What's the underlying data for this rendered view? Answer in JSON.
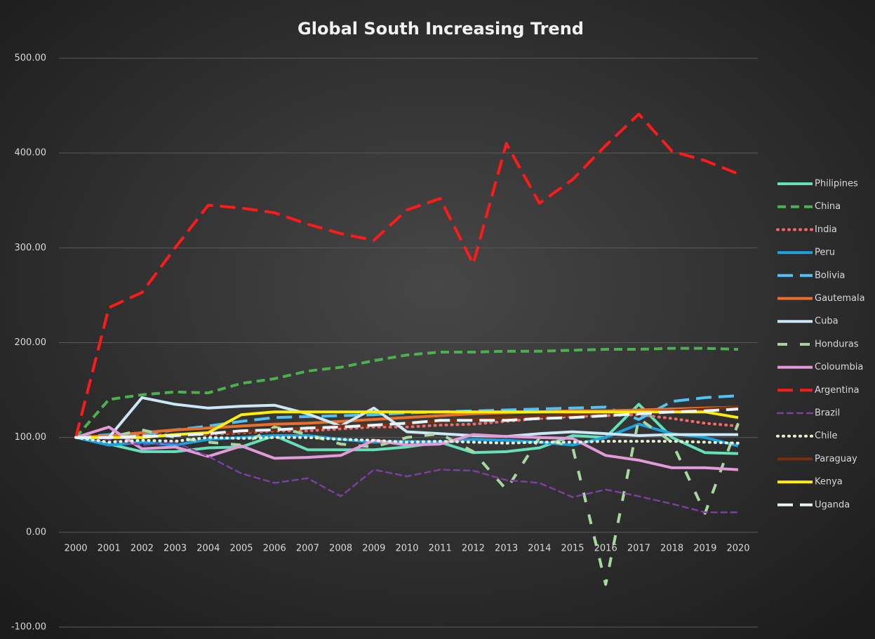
{
  "chart_data": {
    "type": "line",
    "title": "Global South Increasing Trend",
    "categories": [
      "2000",
      "2001",
      "2002",
      "2003",
      "2004",
      "2005",
      "2006",
      "2007",
      "2008",
      "2009",
      "2010",
      "2011",
      "2012",
      "2013",
      "2014",
      "2015",
      "2016",
      "2017",
      "2018",
      "2019",
      "2020"
    ],
    "ylim": [
      -100,
      500
    ],
    "yticks": [
      {
        "value": -100,
        "label": "-100.00"
      },
      {
        "value": 0,
        "label": "0.00"
      },
      {
        "value": 100,
        "label": "100.00"
      },
      {
        "value": 200,
        "label": "200.00"
      },
      {
        "value": 300,
        "label": "300.00"
      },
      {
        "value": 400,
        "label": "400.00"
      },
      {
        "value": 500,
        "label": "500.00"
      }
    ],
    "grid": true,
    "legend": "right",
    "series": [
      {
        "name": "Philipines",
        "color": "#66e0b8",
        "dash": "solid",
        "values": [
          100,
          93,
          85,
          85,
          89,
          90,
          102,
          87,
          87,
          87,
          90,
          95,
          84,
          85,
          89,
          102,
          100,
          135,
          100,
          84,
          83
        ]
      },
      {
        "name": "China",
        "color": "#4caf50",
        "dash": "dashed",
        "values": [
          100,
          140,
          145,
          148,
          147,
          157,
          162,
          170,
          174,
          181,
          187,
          190,
          190,
          191,
          191,
          192,
          193,
          193,
          194,
          194,
          193
        ]
      },
      {
        "name": "India",
        "color": "#f06a6a",
        "dash": "dotted",
        "values": [
          100,
          100,
          102,
          103,
          103,
          105,
          107,
          107,
          109,
          111,
          111,
          113,
          114,
          117,
          120,
          122,
          123,
          124,
          120,
          115,
          112
        ]
      },
      {
        "name": "Peru",
        "color": "#1ba1e2",
        "dash": "solid",
        "values": [
          100,
          92,
          95,
          92,
          98,
          100,
          102,
          102,
          98,
          95,
          96,
          95,
          98,
          97,
          95,
          92,
          100,
          114,
          104,
          100,
          91
        ]
      },
      {
        "name": "Bolivia",
        "color": "#4fc3f7",
        "dash": "longdash",
        "values": [
          100,
          103,
          103,
          108,
          112,
          117,
          121,
          122,
          123,
          124,
          126,
          127,
          128,
          129,
          130,
          131,
          132,
          119,
          138,
          142,
          144
        ]
      },
      {
        "name": "Gautemala",
        "color": "#e8702a",
        "dash": "solid",
        "values": [
          100,
          102,
          105,
          108,
          110,
          112,
          114,
          115,
          117,
          119,
          121,
          123,
          125,
          126,
          127,
          128,
          128,
          129,
          130,
          131,
          132
        ]
      },
      {
        "name": "Cuba",
        "color": "#cde8f5",
        "dash": "solid",
        "values": [
          100,
          100,
          142,
          135,
          131,
          133,
          134,
          125,
          112,
          131,
          106,
          104,
          102,
          101,
          104,
          106,
          104,
          102,
          103,
          103,
          103
        ]
      },
      {
        "name": "Honduras",
        "color": "#a8d8a0",
        "dash": "dashdot",
        "values": [
          100,
          100,
          108,
          100,
          95,
          92,
          111,
          103,
          93,
          90,
          100,
          104,
          85,
          45,
          100,
          90,
          -55,
          120,
          95,
          20,
          115
        ]
      },
      {
        "name": "Coloumbia",
        "color": "#e29bd8",
        "dash": "solid",
        "values": [
          100,
          111,
          88,
          90,
          80,
          91,
          78,
          79,
          81,
          97,
          92,
          93,
          103,
          101,
          100,
          99,
          81,
          76,
          68,
          68,
          66
        ]
      },
      {
        "name": "Argentina",
        "color": "#ff1a1a",
        "dash": "longdash",
        "values": [
          100,
          237,
          253,
          300,
          345,
          342,
          337,
          325,
          315,
          308,
          340,
          352,
          283,
          410,
          347,
          372,
          408,
          441,
          402,
          392,
          378
        ]
      },
      {
        "name": "Brazil",
        "color": "#7b3fa0",
        "dash": "rounddash",
        "values": [
          100,
          98,
          92,
          95,
          80,
          62,
          52,
          57,
          38,
          66,
          59,
          66,
          65,
          55,
          52,
          37,
          45,
          38,
          30,
          21,
          21
        ]
      },
      {
        "name": "Chile",
        "color": "#e6f2d0",
        "dash": "dotted",
        "values": [
          100,
          95,
          97,
          96,
          100,
          99,
          100,
          100,
          98,
          97,
          95,
          96,
          95,
          94,
          95,
          95,
          96,
          96,
          96,
          95,
          94
        ]
      },
      {
        "name": "Paraguay",
        "color": "#7a2e0e",
        "dash": "solid",
        "values": [
          100,
          100,
          100,
          103,
          104,
          106,
          108,
          110,
          112,
          113,
          115,
          117,
          119,
          121,
          122,
          124,
          126,
          127,
          128,
          130,
          132
        ]
      },
      {
        "name": "Kenya",
        "color": "#ffee00",
        "dash": "solid",
        "values": [
          100,
          100,
          100,
          103,
          105,
          124,
          127,
          127,
          127,
          127,
          127,
          127,
          127,
          127,
          127,
          127,
          127,
          127,
          127,
          127,
          121
        ]
      },
      {
        "name": "Uganda",
        "color": "#e6f4fb",
        "dash": "longdash",
        "values": [
          100,
          100,
          101,
          102,
          104,
          107,
          108,
          110,
          111,
          113,
          115,
          118,
          118,
          118,
          120,
          121,
          123,
          125,
          127,
          128,
          130
        ]
      }
    ]
  }
}
